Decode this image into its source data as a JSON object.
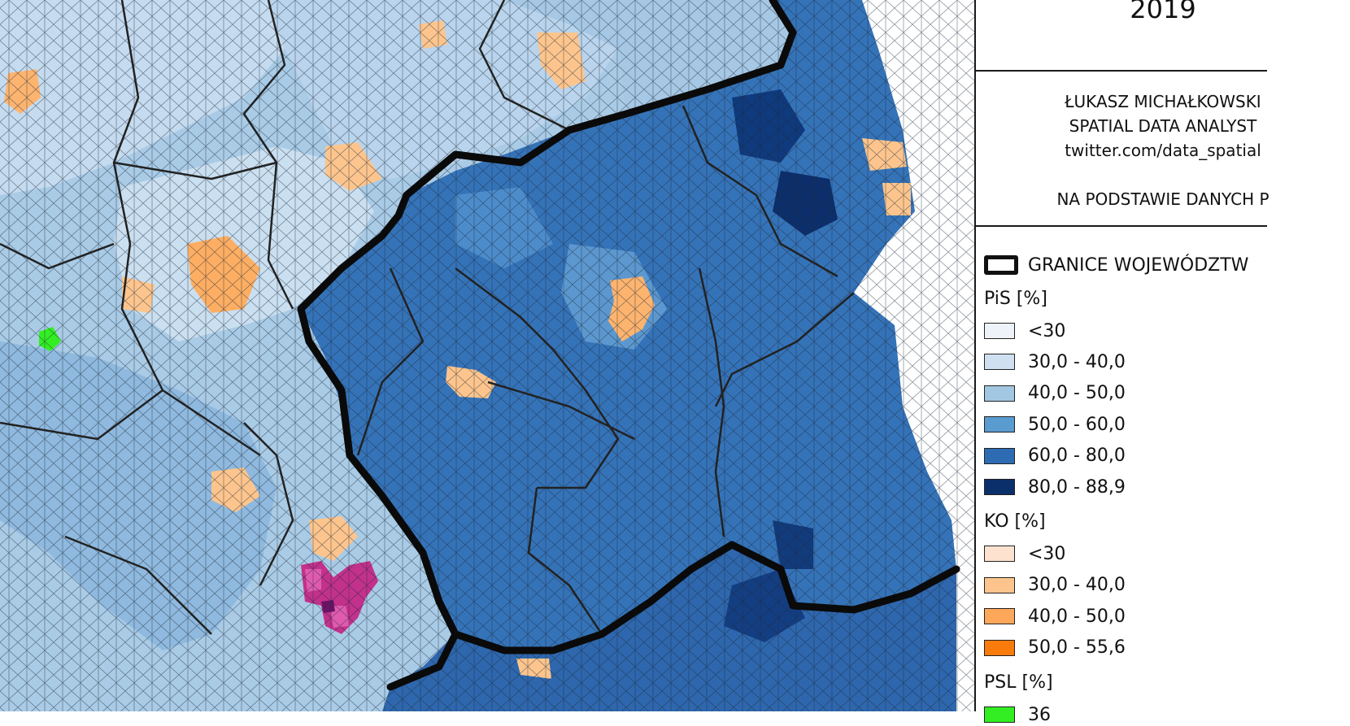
{
  "header": {
    "year": "2019"
  },
  "credits": {
    "author": "ŁUKASZ MICHAŁKOWSKI",
    "role": "SPATIAL DATA ANALYST",
    "twitter": "twitter.com/data_spatial",
    "source": "NA PODSTAWIE DANYCH P"
  },
  "legend": {
    "border_label": "GRANICE WOJEWÓDZTW",
    "groups": [
      {
        "title": "PiS [%]",
        "classes": [
          {
            "label": "<30",
            "color": "#eef3fa"
          },
          {
            "label": "30,0 - 40,0",
            "color": "#cfe0f1"
          },
          {
            "label": "40,0 - 50,0",
            "color": "#a2c7e2"
          },
          {
            "label": "50,0 - 60,0",
            "color": "#5a9bd0"
          },
          {
            "label": "60,0 - 80,0",
            "color": "#2d6cb3"
          },
          {
            "label": "80,0 - 88,9",
            "color": "#0b2f6b"
          }
        ]
      },
      {
        "title": "KO [%]",
        "classes": [
          {
            "label": "<30",
            "color": "#fde3cf"
          },
          {
            "label": "30,0 - 40,0",
            "color": "#fdc58d"
          },
          {
            "label": "40,0 - 50,0",
            "color": "#fda75a"
          },
          {
            "label": "50,0 - 55,6",
            "color": "#f97b0c"
          }
        ]
      },
      {
        "title": "PSL [%]",
        "classes": [
          {
            "label": "36",
            "color": "#33ee22"
          }
        ]
      }
    ]
  },
  "map_colors": {
    "pis_light": "#d4e4f4",
    "pis_mid": "#a2c7e2",
    "pis_dark": "#2d6cb3",
    "pis_darkest": "#0b2f6b",
    "ko_orange": "#fdc58d",
    "psl_green": "#33ee22",
    "konf_magenta": "#c2318c"
  }
}
